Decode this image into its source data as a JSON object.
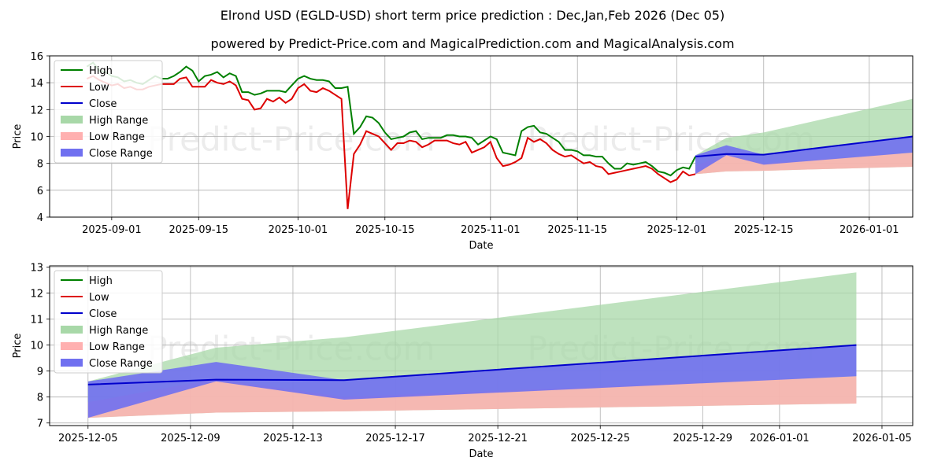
{
  "title_line1": "Elrond USD (EGLD-USD) short term price prediction : Dec,Jan,Feb 2026 (Dec 05)",
  "title_line2": "powered by Predict-Price.com and MagicalPrediction.com and MagicalAnalysis.com",
  "watermark": "Predict-Price.com",
  "colors": {
    "high": "#008000",
    "low": "#dd0000",
    "close": "#0000cc",
    "high_range": "#a8d8a8",
    "low_range": "#ffb0b0",
    "close_range": "#7070f0",
    "grid": "#b0b0b0"
  },
  "chart_data": [
    {
      "type": "line",
      "title": "Elrond USD (EGLD-USD) short term price prediction : Dec,Jan,Feb 2026 (Dec 05)",
      "xlabel": "Date",
      "ylabel": "Price",
      "ylim": [
        4,
        16
      ],
      "yticks": [
        "4",
        "6",
        "8",
        "10",
        "12",
        "14",
        "16"
      ],
      "xticks": [
        {
          "label": "2025-09-01",
          "day": 0
        },
        {
          "label": "2025-09-15",
          "day": 14
        },
        {
          "label": "2025-10-01",
          "day": 30
        },
        {
          "label": "2025-10-15",
          "day": 44
        },
        {
          "label": "2025-11-01",
          "day": 61
        },
        {
          "label": "2025-11-15",
          "day": 75
        },
        {
          "label": "2025-12-01",
          "day": 91
        },
        {
          "label": "2025-12-15",
          "day": 105
        },
        {
          "label": "2026-01-01",
          "day": 122
        }
      ],
      "xlim_days": [
        -10,
        129
      ],
      "legend_position": "top-left",
      "legend": [
        "High",
        "Low",
        "Close",
        "High Range",
        "Low Range",
        "Close Range"
      ],
      "series": [
        {
          "name": "High",
          "x": [
            -4,
            -3,
            -2,
            -1,
            0,
            1,
            2,
            3,
            4,
            5,
            6,
            7,
            8,
            9,
            10,
            11,
            12,
            13,
            14,
            15,
            16,
            17,
            18,
            19,
            20,
            21,
            22,
            23,
            24,
            25,
            26,
            27,
            28,
            29,
            30,
            31,
            32,
            33,
            34,
            35,
            36,
            37,
            38,
            39,
            40,
            41,
            42,
            43,
            44,
            45,
            46,
            47,
            48,
            49,
            50,
            51,
            52,
            53,
            54,
            55,
            56,
            57,
            58,
            59,
            60,
            61,
            62,
            63,
            64,
            65,
            66,
            67,
            68,
            69,
            70,
            71,
            72,
            73,
            74,
            75,
            76,
            77,
            78,
            79,
            80,
            81,
            82,
            83,
            84,
            85,
            86,
            87,
            88,
            89,
            90,
            91,
            92,
            93,
            94
          ],
          "values": [
            15.2,
            15.5,
            14.9,
            14.8,
            14.5,
            14.4,
            14.1,
            14.2,
            14.0,
            13.9,
            14.2,
            14.5,
            14.3,
            14.3,
            14.5,
            14.8,
            15.2,
            14.9,
            14.1,
            14.5,
            14.6,
            14.8,
            14.4,
            14.7,
            14.5,
            13.3,
            13.3,
            13.1,
            13.2,
            13.4,
            13.4,
            13.4,
            13.3,
            13.8,
            14.3,
            14.5,
            14.3,
            14.2,
            14.2,
            14.1,
            13.6,
            13.6,
            13.7,
            10.2,
            10.7,
            11.5,
            11.4,
            11.0,
            10.3,
            9.8,
            9.9,
            10.0,
            10.3,
            10.4,
            9.8,
            9.9,
            9.9,
            9.9,
            10.1,
            10.1,
            10.0,
            10.0,
            9.9,
            9.4,
            9.7,
            10.0,
            9.8,
            8.8,
            8.7,
            8.6,
            10.4,
            10.7,
            10.8,
            10.3,
            10.2,
            9.9,
            9.6,
            9.0,
            9.0,
            8.9,
            8.6,
            8.6,
            8.5,
            8.5,
            8.0,
            7.6,
            7.6,
            8.0,
            7.9,
            8.0,
            8.1,
            7.8,
            7.4,
            7.3,
            7.1,
            7.5,
            7.7,
            7.6,
            8.5
          ]
        },
        {
          "name": "Low",
          "x": [
            -4,
            -3,
            -2,
            -1,
            0,
            1,
            2,
            3,
            4,
            5,
            6,
            7,
            8,
            9,
            10,
            11,
            12,
            13,
            14,
            15,
            16,
            17,
            18,
            19,
            20,
            21,
            22,
            23,
            24,
            25,
            26,
            27,
            28,
            29,
            30,
            31,
            32,
            33,
            34,
            35,
            36,
            37,
            38,
            39,
            40,
            41,
            42,
            43,
            44,
            45,
            46,
            47,
            48,
            49,
            50,
            51,
            52,
            53,
            54,
            55,
            56,
            57,
            58,
            59,
            60,
            61,
            62,
            63,
            64,
            65,
            66,
            67,
            68,
            69,
            70,
            71,
            72,
            73,
            74,
            75,
            76,
            77,
            78,
            79,
            80,
            81,
            82,
            83,
            84,
            85,
            86,
            87,
            88,
            89,
            90,
            91,
            92,
            93,
            94
          ],
          "values": [
            14.3,
            14.5,
            14.2,
            14.0,
            13.8,
            13.9,
            13.6,
            13.7,
            13.5,
            13.5,
            13.7,
            13.8,
            13.9,
            13.9,
            13.9,
            14.3,
            14.4,
            13.7,
            13.7,
            13.7,
            14.2,
            14.0,
            13.9,
            14.1,
            13.8,
            12.8,
            12.7,
            12.0,
            12.1,
            12.8,
            12.6,
            12.9,
            12.5,
            12.8,
            13.6,
            13.9,
            13.4,
            13.3,
            13.6,
            13.4,
            13.1,
            12.8,
            4.6,
            8.7,
            9.4,
            10.4,
            10.2,
            10.0,
            9.5,
            9.0,
            9.5,
            9.5,
            9.7,
            9.6,
            9.2,
            9.4,
            9.7,
            9.7,
            9.7,
            9.5,
            9.4,
            9.6,
            8.8,
            9.0,
            9.2,
            9.6,
            8.4,
            7.8,
            7.9,
            8.1,
            8.4,
            9.9,
            9.6,
            9.8,
            9.5,
            9.0,
            8.7,
            8.5,
            8.6,
            8.3,
            8.0,
            8.1,
            7.8,
            7.7,
            7.2,
            7.3,
            7.4,
            7.5,
            7.6,
            7.7,
            7.8,
            7.6,
            7.2,
            6.9,
            6.6,
            6.8,
            7.4,
            7.1,
            7.2
          ]
        }
      ],
      "forecast": {
        "x": [
          94,
          99,
          105,
          129
        ],
        "close": [
          8.5,
          8.7,
          8.65,
          10.0
        ],
        "high_range": {
          "upper": [
            8.6,
            9.9,
            10.3,
            12.8
          ],
          "lower": [
            7.2,
            7.4,
            7.45,
            7.75
          ]
        },
        "low_range": {
          "upper": [
            7.8,
            8.7,
            8.0,
            8.8
          ],
          "lower": [
            7.2,
            7.4,
            7.45,
            7.75
          ]
        },
        "close_range": {
          "upper": [
            8.6,
            9.35,
            8.65,
            10.0
          ],
          "lower": [
            7.2,
            8.6,
            7.9,
            8.8
          ]
        }
      }
    },
    {
      "type": "line",
      "xlabel": "Date",
      "ylabel": "Price",
      "ylim": [
        6.9,
        13.05
      ],
      "yticks": [
        "7",
        "8",
        "9",
        "10",
        "11",
        "12",
        "13"
      ],
      "xticks": [
        {
          "label": "2025-12-05",
          "day": 0
        },
        {
          "label": "2025-12-09",
          "day": 4
        },
        {
          "label": "2025-12-13",
          "day": 8
        },
        {
          "label": "2025-12-17",
          "day": 12
        },
        {
          "label": "2025-12-21",
          "day": 16
        },
        {
          "label": "2025-12-25",
          "day": 20
        },
        {
          "label": "2025-12-29",
          "day": 24
        },
        {
          "label": "2026-01-01",
          "day": 27
        },
        {
          "label": "2026-01-05",
          "day": 31
        }
      ],
      "xlim_days": [
        -1.5,
        32.2
      ],
      "legend_position": "top-left",
      "legend": [
        "High",
        "Low",
        "Close",
        "High Range",
        "Low Range",
        "Close Range"
      ],
      "forecast": {
        "x": [
          0,
          5,
          10,
          30
        ],
        "close": [
          8.48,
          8.67,
          8.65,
          10.0
        ],
        "high_range": {
          "upper": [
            8.6,
            9.9,
            10.3,
            12.8
          ],
          "lower": [
            7.2,
            7.4,
            7.45,
            7.75
          ]
        },
        "low_range": {
          "upper": [
            7.8,
            8.7,
            8.0,
            8.8
          ],
          "lower": [
            7.2,
            7.4,
            7.45,
            7.75
          ]
        },
        "close_range": {
          "upper": [
            8.6,
            9.35,
            8.65,
            10.0
          ],
          "lower": [
            7.2,
            8.6,
            7.9,
            8.8
          ]
        }
      }
    }
  ]
}
